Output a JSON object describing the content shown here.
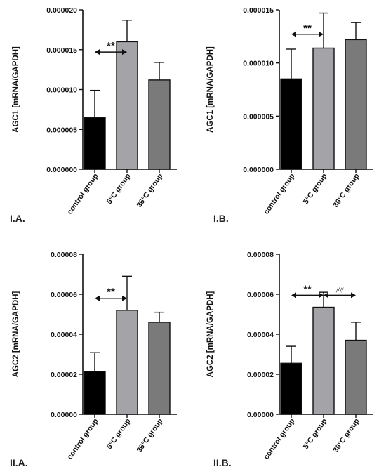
{
  "chart_data": [
    {
      "type": "bar",
      "panel": "I.A.",
      "ylabel": "AGC1 [mRNA/GAPDH]",
      "categories": [
        "control group",
        "5°C group",
        "36°C group"
      ],
      "values": [
        6.5e-06,
        1.6e-05,
        1.12e-05
      ],
      "errors": [
        3.4e-06,
        2.7e-06,
        2.2e-06
      ],
      "colors": [
        "#000000",
        "#a3a3a8",
        "#7a7a7a"
      ],
      "ylim": [
        0,
        2e-05
      ],
      "yticks": [
        "0.000000",
        "0.000005",
        "0.000010",
        "0.000015",
        "0.000020"
      ],
      "yticks_values": [
        0,
        5e-06,
        1e-05,
        1.5e-05,
        2e-05
      ],
      "annotations": [
        {
          "text": "**",
          "from": 0,
          "to": 1,
          "y": 1.47e-05,
          "style": "bold"
        }
      ]
    },
    {
      "type": "bar",
      "panel": "I.B.",
      "ylabel": "AGC1 [mRNA/GAPDH]",
      "categories": [
        "control group",
        "5°C group",
        "36°C group"
      ],
      "values": [
        8.5e-06,
        1.14e-05,
        1.22e-05
      ],
      "errors": [
        2.8e-06,
        3.3e-06,
        1.6e-06
      ],
      "colors": [
        "#000000",
        "#a3a3a8",
        "#7a7a7a"
      ],
      "ylim": [
        0,
        1.5e-05
      ],
      "yticks": [
        "0.000000",
        "0.000005",
        "0.000010",
        "0.000015"
      ],
      "yticks_values": [
        0,
        5e-06,
        1e-05,
        1.5e-05
      ],
      "annotations": [
        {
          "text": "**",
          "from": 0,
          "to": 1,
          "y": 1.27e-05,
          "style": "bold"
        }
      ]
    },
    {
      "type": "bar",
      "panel": "II.A.",
      "ylabel": "AGC2 [mRNA/GAPDH]",
      "categories": [
        "control group",
        "5°C group",
        "36°C group"
      ],
      "values": [
        2.15e-05,
        5.2e-05,
        4.6e-05
      ],
      "errors": [
        9.3e-06,
        1.7e-05,
        5e-06
      ],
      "colors": [
        "#000000",
        "#a3a3a8",
        "#7a7a7a"
      ],
      "ylim": [
        0,
        8e-05
      ],
      "yticks": [
        "0.00000",
        "0.00002",
        "0.00004",
        "0.00006",
        "0.00008"
      ],
      "yticks_values": [
        0,
        2e-05,
        4e-05,
        6e-05,
        8e-05
      ],
      "annotations": [
        {
          "text": "**",
          "from": 0,
          "to": 1,
          "y": 5.8e-05,
          "style": "bold"
        }
      ]
    },
    {
      "type": "bar",
      "panel": "II.B.",
      "ylabel": "AGC2 [mRNA/GAPDH]",
      "categories": [
        "control group",
        "5°C group",
        "36°C group"
      ],
      "values": [
        2.55e-05,
        5.35e-05,
        3.7e-05
      ],
      "errors": [
        8.5e-06,
        7.5e-06,
        9e-06
      ],
      "colors": [
        "#000000",
        "#a3a3a8",
        "#7a7a7a"
      ],
      "ylim": [
        0,
        8e-05
      ],
      "yticks": [
        "0.00000",
        "0.00002",
        "0.00004",
        "0.00006",
        "0.00008"
      ],
      "yticks_values": [
        0,
        2e-05,
        4e-05,
        6e-05,
        8e-05
      ],
      "annotations": [
        {
          "text": "**",
          "from": 0,
          "to": 1,
          "y": 5.95e-05,
          "style": "bold"
        },
        {
          "text": "##",
          "from": 1,
          "to": 2,
          "y": 5.95e-05,
          "style": "small"
        }
      ]
    }
  ]
}
